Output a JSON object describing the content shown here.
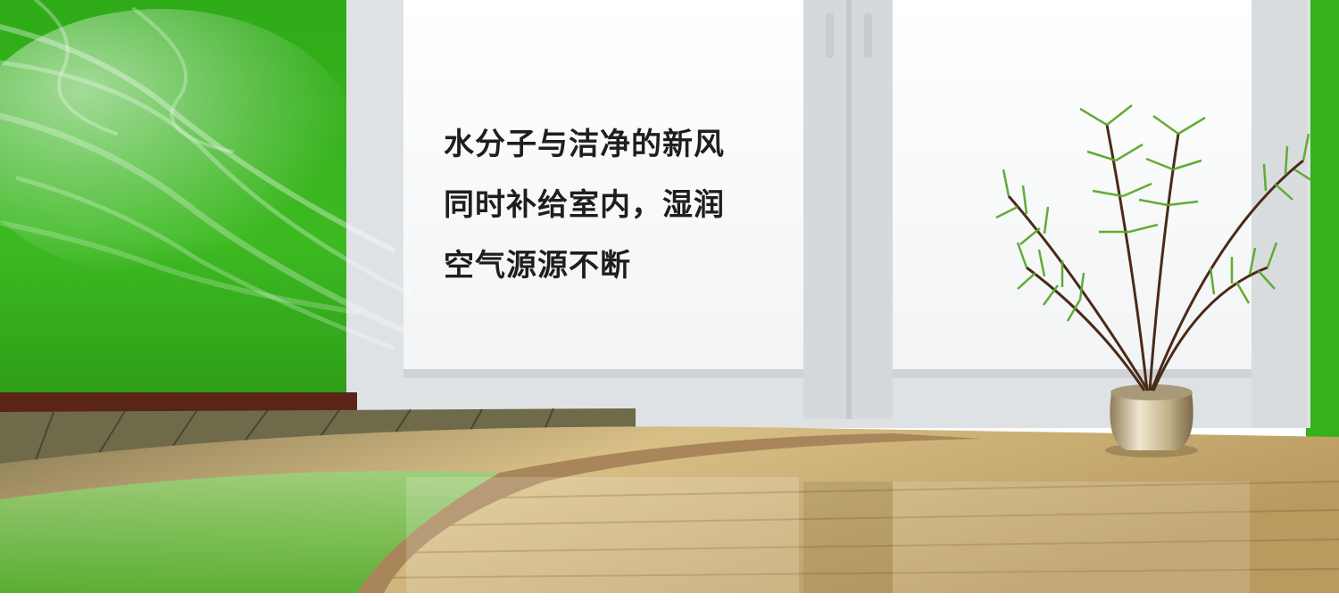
{
  "banner": {
    "headline_lines": [
      "水分子与洁净的新风",
      "同时补给室内，湿润",
      "空气源源不断"
    ]
  },
  "colors": {
    "wall_green": "#3cb31e",
    "floor_wood": "#c9a865",
    "window_frame": "#e4e6e8",
    "text": "#1e1e1e"
  }
}
